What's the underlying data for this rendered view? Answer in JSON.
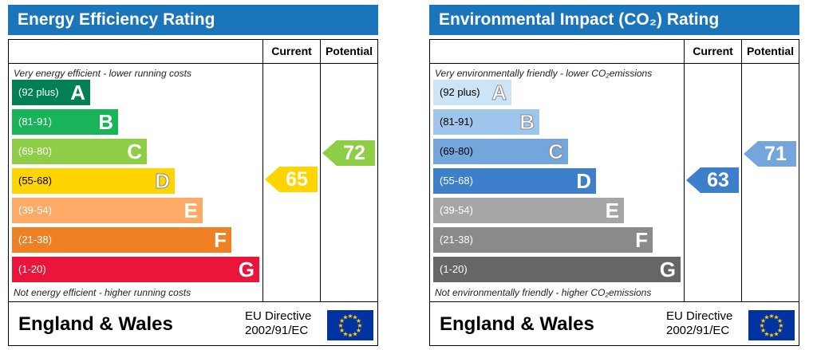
{
  "chart_data": [
    {
      "type": "bar",
      "title": "Energy Efficiency Rating",
      "columns": [
        "Current",
        "Potential"
      ],
      "top_note": "Very energy efficient - lower running costs",
      "bottom_note": "Not energy efficient - higher running costs",
      "bands": [
        {
          "range": "(92 plus)",
          "letter": "A",
          "color": "#008054"
        },
        {
          "range": "(81-91)",
          "letter": "B",
          "color": "#19b459"
        },
        {
          "range": "(69-80)",
          "letter": "C",
          "color": "#8dce46"
        },
        {
          "range": "(55-68)",
          "letter": "D",
          "color": "#ffd500"
        },
        {
          "range": "(39-54)",
          "letter": "E",
          "color": "#fcaa65"
        },
        {
          "range": "(21-38)",
          "letter": "F",
          "color": "#ef8023"
        },
        {
          "range": "(1-20)",
          "letter": "G",
          "color": "#e9153b"
        }
      ],
      "current": {
        "value": 65,
        "band": "D",
        "color": "#ffd500"
      },
      "potential": {
        "value": 72,
        "band": "C",
        "color": "#8dce46"
      },
      "region": "England & Wales",
      "directive": [
        "EU Directive",
        "2002/91/EC"
      ]
    },
    {
      "type": "bar",
      "title": "Environmental Impact (CO₂) Rating",
      "columns": [
        "Current",
        "Potential"
      ],
      "top_note": "Very environmentally friendly - lower CO₂emissions",
      "bottom_note": "Not environmentally friendly - higher CO₂emissions",
      "bands": [
        {
          "range": "(92 plus)",
          "letter": "A",
          "color": "#cde4f6"
        },
        {
          "range": "(81-91)",
          "letter": "B",
          "color": "#9ec6ec"
        },
        {
          "range": "(69-80)",
          "letter": "C",
          "color": "#74a6dc"
        },
        {
          "range": "(55-68)",
          "letter": "D",
          "color": "#3e7fcb"
        },
        {
          "range": "(39-54)",
          "letter": "E",
          "color": "#a6a6a6"
        },
        {
          "range": "(21-38)",
          "letter": "F",
          "color": "#8a8a8a"
        },
        {
          "range": "(1-20)",
          "letter": "G",
          "color": "#666666"
        }
      ],
      "current": {
        "value": 63,
        "band": "D",
        "color": "#3e7fcb"
      },
      "potential": {
        "value": 71,
        "band": "C",
        "color": "#74a6dc"
      },
      "region": "England & Wales",
      "directive": [
        "EU Directive",
        "2002/91/EC"
      ]
    }
  ]
}
